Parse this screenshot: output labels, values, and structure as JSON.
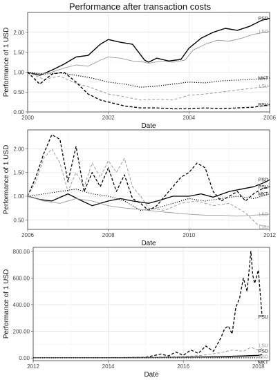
{
  "title": "Performance after transaction costs",
  "chart_data": [
    {
      "type": "line",
      "xlabel": "Date",
      "ylabel": "Performance of 1 USD",
      "xlim": [
        2000,
        2006
      ],
      "ylim": [
        0,
        2.5
      ],
      "xticks": [
        {
          "v": 2000,
          "label": "2000"
        },
        {
          "v": 2002,
          "label": "2002"
        },
        {
          "v": 2004,
          "label": "2004"
        },
        {
          "v": 2006,
          "label": "2006"
        }
      ],
      "yticks": [
        {
          "v": 0,
          "label": "0.00"
        },
        {
          "v": 0.5,
          "label": "0.50"
        },
        {
          "v": 1.0,
          "label": "1.00"
        },
        {
          "v": 1.5,
          "label": "1.50"
        },
        {
          "v": 2.0,
          "label": "2.00"
        }
      ],
      "grid": true,
      "legend": "direct labels at right",
      "series": [
        {
          "name": "PSD",
          "style": "solid",
          "color": "#000000",
          "width": 1.4,
          "x": [
            2000,
            2000.3,
            2000.6,
            2000.9,
            2001.2,
            2001.5,
            2001.8,
            2002.0,
            2002.3,
            2002.6,
            2002.9,
            2003.0,
            2003.2,
            2003.5,
            2003.8,
            2004.0,
            2004.3,
            2004.6,
            2004.9,
            2005.2,
            2005.5,
            2005.8,
            2006.0
          ],
          "y": [
            1.0,
            0.92,
            1.05,
            1.2,
            1.38,
            1.42,
            1.7,
            1.82,
            1.75,
            1.7,
            1.3,
            1.25,
            1.35,
            1.28,
            1.32,
            1.6,
            1.85,
            2.0,
            2.1,
            2.05,
            2.15,
            2.3,
            2.35
          ]
        },
        {
          "name": "LSD",
          "style": "solid",
          "color": "#9a9a9a",
          "width": 0.9,
          "x": [
            2000,
            2000.3,
            2000.6,
            2000.9,
            2001.2,
            2001.5,
            2001.8,
            2002.0,
            2002.3,
            2002.6,
            2002.9,
            2003.0,
            2003.3,
            2003.6,
            2003.9,
            2004.1,
            2004.4,
            2004.7,
            2005.0,
            2005.3,
            2005.6,
            2006.0
          ],
          "y": [
            1.0,
            0.95,
            1.0,
            1.1,
            1.18,
            1.15,
            1.3,
            1.38,
            1.35,
            1.28,
            1.25,
            1.22,
            1.28,
            1.25,
            1.3,
            1.55,
            1.7,
            1.8,
            1.78,
            1.85,
            1.95,
            2.02
          ]
        },
        {
          "name": "MKT",
          "style": "dotted",
          "color": "#000000",
          "width": 1.2,
          "x": [
            2000,
            2000.4,
            2000.8,
            2001.2,
            2001.6,
            2002.0,
            2002.4,
            2002.8,
            2003.2,
            2003.6,
            2004.0,
            2004.4,
            2004.8,
            2005.2,
            2005.6,
            2006.0
          ],
          "y": [
            1.0,
            0.95,
            0.98,
            0.92,
            0.85,
            0.75,
            0.7,
            0.62,
            0.65,
            0.7,
            0.75,
            0.73,
            0.78,
            0.8,
            0.82,
            0.85
          ]
        },
        {
          "name": "LSU",
          "style": "dashed",
          "color": "#9a9a9a",
          "width": 1.0,
          "x": [
            2000,
            2000.4,
            2000.8,
            2001.2,
            2001.6,
            2002.0,
            2002.4,
            2002.8,
            2003.2,
            2003.6,
            2004.0,
            2004.4,
            2004.8,
            2005.2,
            2005.6,
            2006.0
          ],
          "y": [
            1.0,
            0.82,
            0.9,
            0.72,
            0.6,
            0.45,
            0.38,
            0.3,
            0.32,
            0.3,
            0.42,
            0.45,
            0.5,
            0.55,
            0.6,
            0.65
          ]
        },
        {
          "name": "PSU",
          "style": "dashed",
          "color": "#000000",
          "width": 1.4,
          "x": [
            2000,
            2000.3,
            2000.6,
            2000.9,
            2001.2,
            2001.5,
            2001.8,
            2002.0,
            2002.4,
            2002.8,
            2003.2,
            2003.6,
            2004.0,
            2004.4,
            2004.8,
            2005.2,
            2005.6,
            2006.0
          ],
          "y": [
            1.0,
            0.7,
            0.95,
            1.0,
            0.75,
            0.45,
            0.3,
            0.25,
            0.15,
            0.1,
            0.1,
            0.08,
            0.08,
            0.1,
            0.08,
            0.1,
            0.12,
            0.18
          ]
        }
      ]
    },
    {
      "type": "line",
      "xlabel": "Date",
      "ylabel": "Performance of 1 USD",
      "xlim": [
        2006,
        2012
      ],
      "ylim": [
        0.3,
        2.4
      ],
      "xticks": [
        {
          "v": 2006,
          "label": "2006"
        },
        {
          "v": 2008,
          "label": "2008"
        },
        {
          "v": 2010,
          "label": "2010"
        },
        {
          "v": 2012,
          "label": "2012"
        }
      ],
      "yticks": [
        {
          "v": 0.5,
          "label": "0.50"
        },
        {
          "v": 1.0,
          "label": "1.00"
        },
        {
          "v": 1.5,
          "label": "1.50"
        },
        {
          "v": 2.0,
          "label": "2.00"
        }
      ],
      "grid": true,
      "legend": "direct labels at right",
      "series": [
        {
          "name": "PSD",
          "style": "solid",
          "color": "#000000",
          "width": 1.3,
          "x": [
            2006,
            2006.3,
            2006.6,
            2007.0,
            2007.3,
            2007.6,
            2008.0,
            2008.3,
            2008.6,
            2009.0,
            2009.3,
            2009.6,
            2010.0,
            2010.3,
            2010.6,
            2011.0,
            2011.3,
            2011.6,
            2011.9,
            2012.0
          ],
          "y": [
            1.0,
            0.93,
            0.9,
            1.05,
            0.92,
            0.8,
            0.9,
            0.95,
            0.9,
            0.85,
            0.92,
            1.0,
            1.0,
            1.05,
            0.98,
            1.1,
            1.15,
            1.2,
            1.3,
            1.35
          ]
        },
        {
          "name": "PSU",
          "style": "dashed",
          "color": "#000000",
          "width": 1.3,
          "x": [
            2006,
            2006.2,
            2006.4,
            2006.6,
            2006.8,
            2007.0,
            2007.2,
            2007.4,
            2007.6,
            2007.8,
            2008.0,
            2008.2,
            2008.4,
            2008.6,
            2008.8,
            2009.0,
            2009.2,
            2009.4,
            2009.6,
            2009.8,
            2010.0,
            2010.2,
            2010.4,
            2010.6,
            2010.8,
            2011.0,
            2011.2,
            2011.4,
            2011.6,
            2011.8,
            2012.0
          ],
          "y": [
            1.0,
            1.4,
            1.9,
            2.3,
            2.2,
            1.3,
            2.05,
            1.1,
            1.5,
            1.2,
            1.6,
            1.1,
            1.45,
            0.95,
            0.85,
            0.7,
            0.8,
            1.0,
            1.2,
            1.4,
            1.5,
            1.7,
            1.6,
            1.1,
            0.9,
            1.0,
            1.1,
            0.9,
            1.05,
            1.15,
            1.2
          ]
        },
        {
          "name": "MKT",
          "style": "dotted",
          "color": "#000000",
          "width": 1.1,
          "x": [
            2006,
            2006.4,
            2006.8,
            2007.2,
            2007.6,
            2008.0,
            2008.4,
            2008.8,
            2009.2,
            2009.6,
            2010.0,
            2010.4,
            2010.8,
            2011.2,
            2011.6,
            2012.0
          ],
          "y": [
            1.0,
            1.05,
            1.1,
            1.15,
            1.05,
            1.0,
            0.9,
            0.7,
            0.75,
            0.85,
            0.95,
            0.9,
            0.95,
            1.0,
            0.95,
            1.05
          ]
        },
        {
          "name": "LSD",
          "style": "solid",
          "color": "#9a9a9a",
          "width": 0.9,
          "x": [
            2006,
            2006.4,
            2006.8,
            2007.2,
            2007.6,
            2008.0,
            2008.4,
            2008.8,
            2009.2,
            2009.6,
            2010.0,
            2010.4,
            2010.8,
            2011.2,
            2011.6,
            2012.0
          ],
          "y": [
            1.0,
            0.9,
            0.85,
            0.95,
            0.9,
            0.8,
            0.75,
            0.72,
            0.68,
            0.65,
            0.62,
            0.6,
            0.6,
            0.58,
            0.6,
            0.62
          ]
        },
        {
          "name": "LSU",
          "style": "dashed",
          "color": "#9a9a9a",
          "width": 1.0,
          "x": [
            2006,
            2006.2,
            2006.4,
            2006.6,
            2006.8,
            2007.0,
            2007.2,
            2007.4,
            2007.6,
            2007.8,
            2008.0,
            2008.2,
            2008.4,
            2008.6,
            2008.8,
            2009.0,
            2009.4,
            2009.8,
            2010.2,
            2010.6,
            2011.0,
            2011.4,
            2011.7,
            2012.0
          ],
          "y": [
            1.0,
            1.3,
            1.8,
            2.0,
            1.7,
            1.1,
            1.5,
            1.2,
            1.7,
            1.4,
            1.75,
            1.5,
            1.8,
            1.2,
            1.0,
            0.75,
            0.7,
            0.85,
            0.9,
            0.8,
            0.85,
            0.65,
            0.4,
            0.35
          ]
        }
      ]
    },
    {
      "type": "line",
      "xlabel": "Date",
      "ylabel": "Performance of 1 USD",
      "xlim": [
        2012,
        2018.3
      ],
      "ylim": [
        -20,
        830
      ],
      "xticks": [
        {
          "v": 2012,
          "label": "2012"
        },
        {
          "v": 2014,
          "label": "2014"
        },
        {
          "v": 2016,
          "label": "2016"
        },
        {
          "v": 2018,
          "label": "2018"
        }
      ],
      "yticks": [
        {
          "v": 0,
          "label": "0.00"
        },
        {
          "v": 200,
          "label": "200.00"
        },
        {
          "v": 400,
          "label": "400.00"
        },
        {
          "v": 600,
          "label": "600.00"
        },
        {
          "v": 800,
          "label": "800.00"
        }
      ],
      "grid": true,
      "legend": "direct labels at right",
      "series": [
        {
          "name": "PSU",
          "style": "dashed",
          "color": "#000000",
          "width": 1.3,
          "x": [
            2012,
            2013,
            2014,
            2015,
            2015.4,
            2015.6,
            2015.8,
            2016.0,
            2016.2,
            2016.4,
            2016.6,
            2016.8,
            2017.0,
            2017.1,
            2017.2,
            2017.3,
            2017.4,
            2017.5,
            2017.6,
            2017.7,
            2017.8,
            2017.85,
            2017.9,
            2018.0,
            2018.1
          ],
          "y": [
            1,
            1,
            2,
            5,
            30,
            15,
            45,
            20,
            60,
            35,
            90,
            50,
            150,
            220,
            240,
            180,
            380,
            450,
            600,
            500,
            800,
            620,
            560,
            660,
            310
          ]
        },
        {
          "name": "LSU",
          "style": "dashed",
          "color": "#9a9a9a",
          "width": 1.0,
          "x": [
            2012,
            2013,
            2014,
            2015,
            2015.5,
            2016.0,
            2016.5,
            2017.0,
            2017.3,
            2017.6,
            2017.8,
            2018.0,
            2018.1
          ],
          "y": [
            1,
            1,
            1,
            2,
            8,
            10,
            20,
            40,
            60,
            50,
            80,
            60,
            70
          ]
        },
        {
          "name": "PSD",
          "style": "solid",
          "color": "#000000",
          "width": 1.3,
          "x": [
            2012,
            2014,
            2016,
            2017,
            2018,
            2018.1
          ],
          "y": [
            1,
            2,
            5,
            10,
            20,
            25
          ]
        },
        {
          "name": "LSD",
          "style": "solid",
          "color": "#9a9a9a",
          "width": 0.9,
          "x": [
            2012,
            2014,
            2016,
            2017,
            2018,
            2018.1
          ],
          "y": [
            1,
            1.5,
            3,
            5,
            10,
            12
          ]
        },
        {
          "name": "MKT",
          "style": "dotted",
          "color": "#000000",
          "width": 1.1,
          "x": [
            2012,
            2014,
            2016,
            2018,
            2018.1
          ],
          "y": [
            1,
            1.2,
            1.5,
            2,
            2
          ]
        }
      ]
    }
  ]
}
